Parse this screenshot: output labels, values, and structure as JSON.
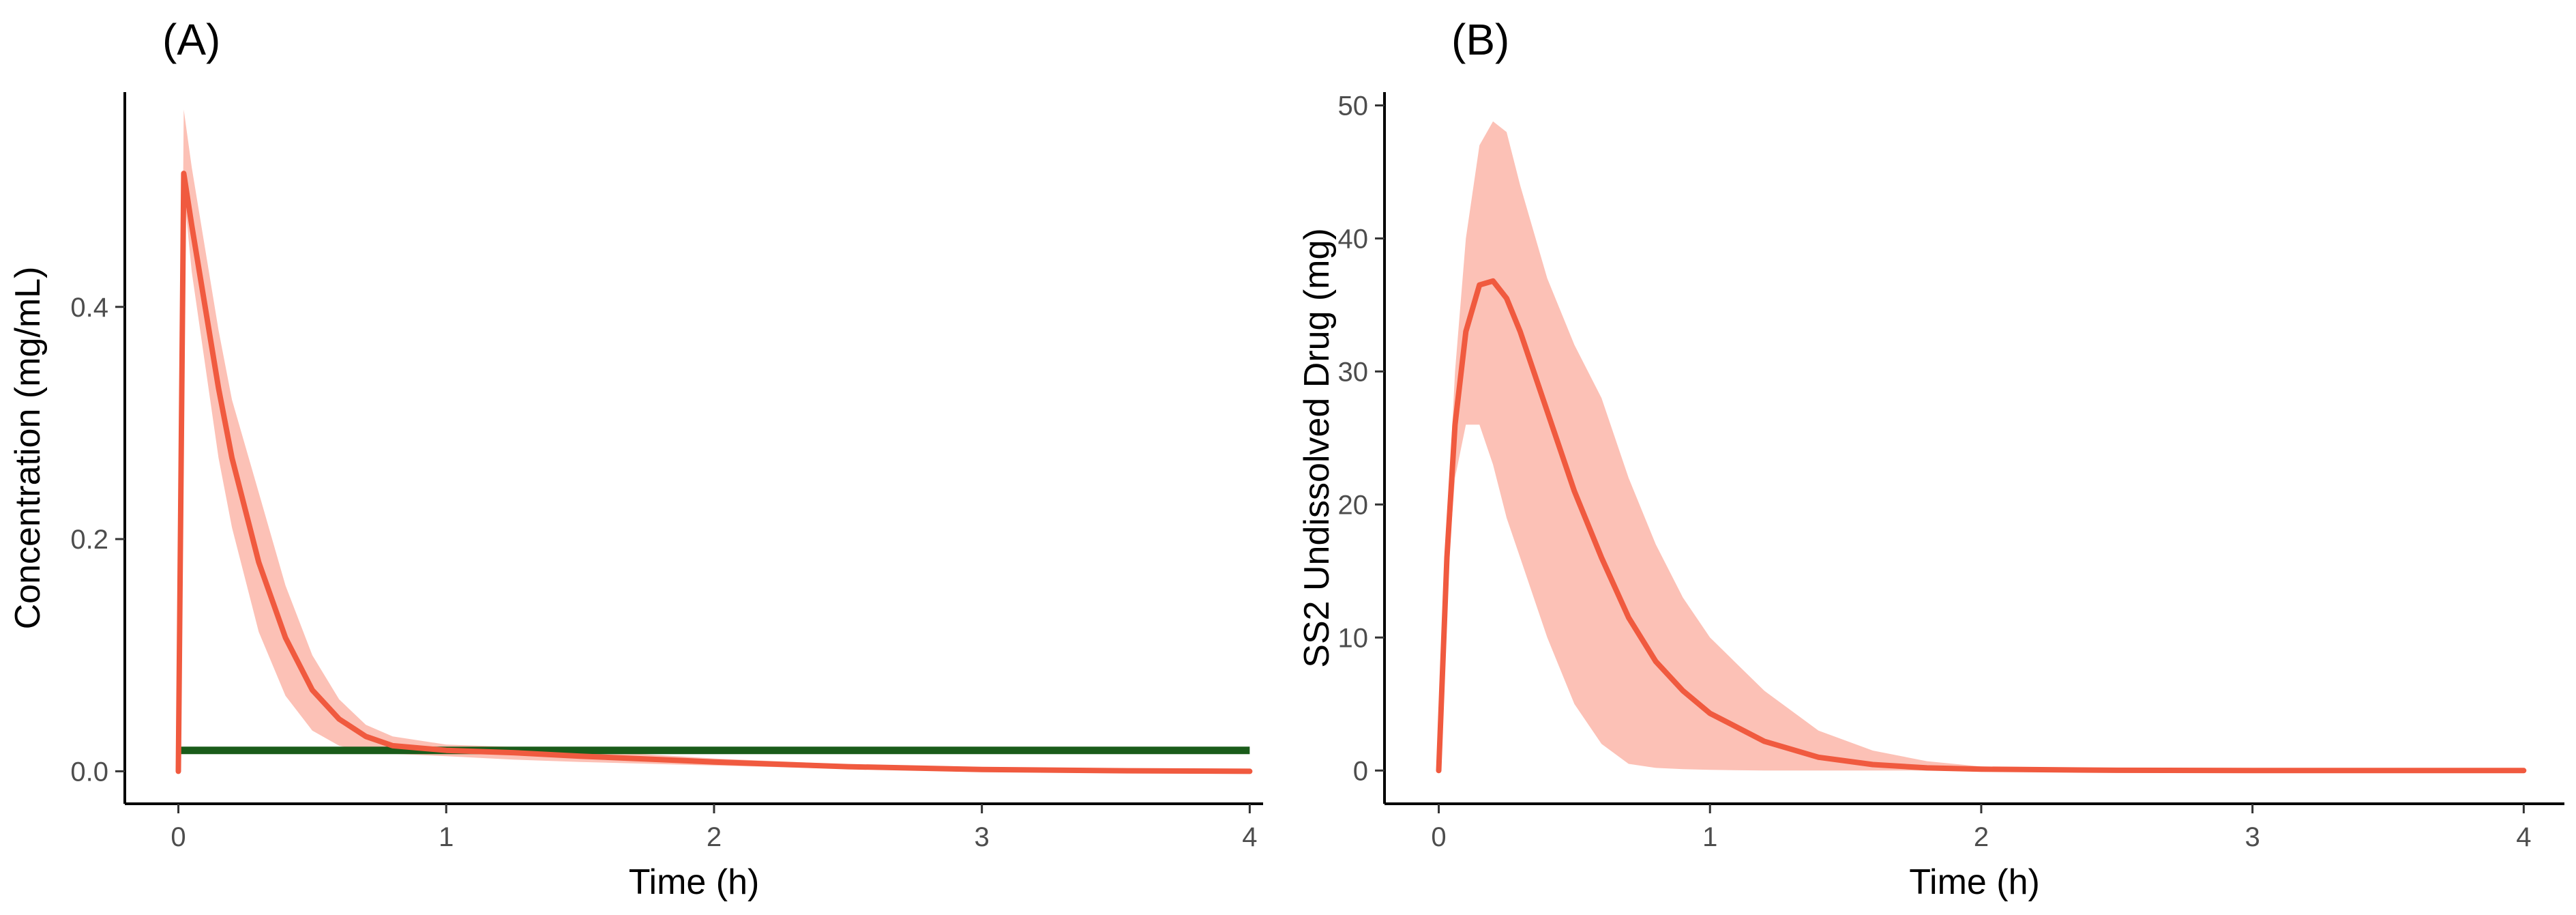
{
  "chart_data": [
    {
      "type": "line",
      "panel_label": "(A)",
      "xlabel": "Time (h)",
      "ylabel": "Concentration (mg/mL)",
      "xlim": [
        -0.2,
        4.05
      ],
      "ylim": [
        -0.028,
        0.585
      ],
      "xticks": [
        0,
        1,
        2,
        3,
        4
      ],
      "xtick_labels": [
        "0",
        "1",
        "2",
        "3",
        "4"
      ],
      "yticks": [
        0.0,
        0.2,
        0.4
      ],
      "ytick_labels": [
        "0.0",
        "0.2",
        "0.4"
      ],
      "colors": {
        "median": "#f05a3f",
        "band": "#fcc1b6",
        "threshold": "#1a5c1a"
      },
      "series": [
        {
          "name": "median",
          "x": [
            0,
            0.02,
            0.05,
            0.1,
            0.15,
            0.2,
            0.3,
            0.4,
            0.5,
            0.6,
            0.7,
            0.8,
            1.0,
            1.25,
            1.5,
            2.0,
            2.5,
            3.0,
            3.5,
            4.0
          ],
          "values": [
            0,
            0.515,
            0.47,
            0.4,
            0.33,
            0.27,
            0.18,
            0.115,
            0.07,
            0.045,
            0.03,
            0.022,
            0.018,
            0.016,
            0.013,
            0.008,
            0.004,
            0.0015,
            0.0005,
            0.0
          ]
        },
        {
          "name": "interval",
          "x": [
            0,
            0.02,
            0.05,
            0.1,
            0.15,
            0.2,
            0.3,
            0.4,
            0.5,
            0.6,
            0.7,
            0.8,
            1.0,
            1.25,
            1.5,
            2.0,
            2.5,
            3.0,
            3.5,
            4.0
          ],
          "lower": [
            0,
            0.5,
            0.43,
            0.35,
            0.27,
            0.21,
            0.12,
            0.065,
            0.035,
            0.022,
            0.017,
            0.015,
            0.013,
            0.01,
            0.008,
            0.005,
            0.002,
            0.0005,
            0.0,
            0.0
          ],
          "upper": [
            0,
            0.57,
            0.52,
            0.45,
            0.38,
            0.32,
            0.24,
            0.16,
            0.1,
            0.062,
            0.04,
            0.03,
            0.023,
            0.021,
            0.018,
            0.011,
            0.006,
            0.002,
            0.001,
            0.0005
          ]
        },
        {
          "name": "threshold",
          "x": [
            0,
            4.0
          ],
          "values": [
            0.018,
            0.018
          ]
        }
      ]
    },
    {
      "type": "line",
      "panel_label": "(B)",
      "xlabel": "Time (h)",
      "ylabel": "SS2 Undissolved Drug (mg)",
      "xlim": [
        -0.2,
        4.15
      ],
      "ylim": [
        -2.5,
        51
      ],
      "xticks": [
        0,
        1,
        2,
        3,
        4
      ],
      "xtick_labels": [
        "0",
        "1",
        "2",
        "3",
        "4"
      ],
      "yticks": [
        0,
        10,
        20,
        30,
        40,
        50
      ],
      "ytick_labels": [
        "0",
        "10",
        "20",
        "30",
        "40",
        "50"
      ],
      "colors": {
        "median": "#f05a3f",
        "band": "#fcc1b6"
      },
      "series": [
        {
          "name": "median",
          "x": [
            0,
            0.03,
            0.06,
            0.1,
            0.15,
            0.2,
            0.25,
            0.3,
            0.4,
            0.5,
            0.6,
            0.7,
            0.8,
            0.9,
            1.0,
            1.2,
            1.4,
            1.6,
            1.8,
            2.0,
            2.5,
            3.0,
            3.5,
            4.0
          ],
          "values": [
            0,
            16,
            26,
            33,
            36.5,
            36.8,
            35.5,
            33,
            27,
            21,
            16,
            11.5,
            8.2,
            6.0,
            4.3,
            2.2,
            1.0,
            0.45,
            0.2,
            0.1,
            0.02,
            0,
            0,
            0
          ]
        },
        {
          "name": "interval",
          "x": [
            0,
            0.03,
            0.06,
            0.1,
            0.15,
            0.2,
            0.25,
            0.3,
            0.4,
            0.5,
            0.6,
            0.7,
            0.8,
            0.9,
            1.0,
            1.2,
            1.4,
            1.6,
            1.8,
            2.0,
            2.5,
            3.0,
            3.5,
            4.0
          ],
          "lower": [
            0,
            14,
            22,
            26,
            26,
            23,
            19,
            16,
            10,
            5,
            2,
            0.5,
            0.2,
            0.1,
            0.05,
            0,
            0,
            0,
            0,
            0,
            0,
            0,
            0,
            0
          ],
          "upper": [
            0,
            18,
            30,
            40,
            47,
            48.8,
            48,
            44,
            37,
            32,
            28,
            22,
            17,
            13,
            10,
            6,
            3,
            1.5,
            0.7,
            0.3,
            0.05,
            0.01,
            0,
            0
          ]
        }
      ]
    }
  ]
}
